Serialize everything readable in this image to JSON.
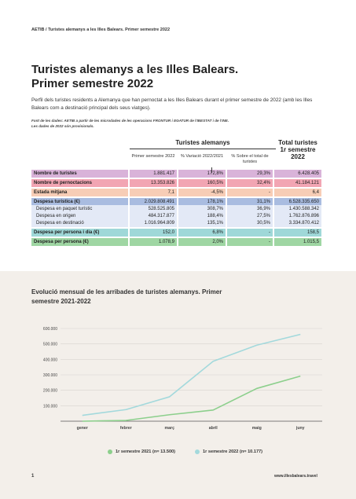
{
  "header": {
    "running_head": "AETIB / Turistes alemanys a les Illes Balears. Primer semestre 2022"
  },
  "title": {
    "line1": "Turistes alemanys a les Illes Balears.",
    "line2": "Primer semestre 2022"
  },
  "intro": "Perfil dels turistes residents a Alemanya que han pernoctat a les Illes Balears durant el primer semestre de 2022 (amb les Illes Balears com a destinació principal dels seus viatges).",
  "source": {
    "line1": "Font de les dades: AETIB a partir de les microdades de les operacions FRONTUR i EGATUR de l'IBESTAT i de l'INE.",
    "line2": "Les dades de 2022 són provisionals."
  },
  "table": {
    "group_header": "Turistes alemanys",
    "total_header": "Total turistes 1r semestre 2022",
    "columns": [
      "Primer semestre 2022",
      "% Variació 2022/2021",
      "% Sobre el total de turistes"
    ],
    "rows": [
      {
        "label": "Nombre de turistes",
        "v1": "1.881.417",
        "v2": "172,8%",
        "v3": "29,3%",
        "v4": "6.428.405",
        "color": "#d9b3d9",
        "sub": false
      },
      {
        "label": "Nombre de pernoctacions",
        "v1": "13.353.826",
        "v2": "160,5%",
        "v3": "32,4%",
        "v4": "41.184.121",
        "color": "#f2a5b3",
        "sub": false
      },
      {
        "label": "Estada mitjana",
        "v1": "7,1",
        "v2": "-4,5%",
        "v3": "-",
        "v4": "6,4",
        "color": "#f7cdb6",
        "sub": false
      },
      {
        "label": "Despesa turística (€)",
        "v1": "2.029.808.491",
        "v2": "178,1%",
        "v3": "31,1%",
        "v4": "6.528.335.650",
        "color": "#a9bce0",
        "sub": false
      },
      {
        "label": "Despesa en paquet turístic",
        "v1": "528.525.805",
        "v2": "308,7%",
        "v3": "36,9%",
        "v4": "1.430.588.342",
        "color": "#e3e9f6",
        "sub": true
      },
      {
        "label": "Despesa en origen",
        "v1": "484.317.877",
        "v2": "188,4%",
        "v3": "27,5%",
        "v4": "1.762.876.896",
        "color": "#e3e9f6",
        "sub": true
      },
      {
        "label": "Despesa en destinació",
        "v1": "1.016.964.809",
        "v2": "135,1%",
        "v3": "30,5%",
        "v4": "3.334.870.412",
        "color": "#e3e9f6",
        "sub": true
      },
      {
        "label": "Despesa per persona i dia (€)",
        "v1": "152,0",
        "v2": "6,8%",
        "v3": "-",
        "v4": "158,5",
        "color": "#9fd8d8",
        "sub": false
      },
      {
        "label": "Despesa per persona (€)",
        "v1": "1.078,9",
        "v2": "2,0%",
        "v3": "-",
        "v4": "1.015,5",
        "color": "#9fd6a3",
        "sub": false
      }
    ]
  },
  "chart_data": {
    "type": "line",
    "title": "Evolució mensual de les arribades de turistes alemanys. Primer semestre 2021-2022",
    "categories": [
      "gener",
      "febrer",
      "març",
      "abril",
      "maig",
      "juny"
    ],
    "yticks": [
      "100.000",
      "200.000",
      "300.000",
      "400.000",
      "500.000",
      "600.000"
    ],
    "ylim": [
      0,
      600000
    ],
    "grid": true,
    "legend_position": "bottom",
    "series": [
      {
        "name": "1r semestre 2021 (n= 13.500)",
        "color": "#8ccf8c",
        "values": [
          0,
          5000,
          42000,
          72000,
          212000,
          292000
        ]
      },
      {
        "name": "1r semestre 2022 (n= 10.177)",
        "color": "#a3d9dc",
        "values": [
          38000,
          75000,
          158000,
          388000,
          492000,
          562000
        ]
      }
    ]
  },
  "footer": {
    "page_number": "1",
    "website": "www.illesbalears.travel"
  }
}
